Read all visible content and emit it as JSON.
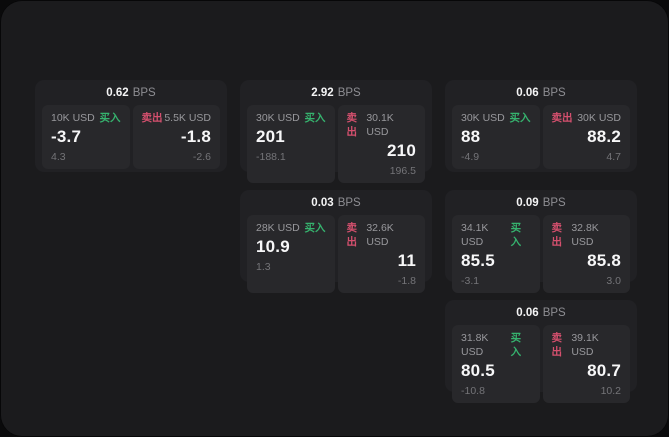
{
  "labels": {
    "bps": "BPS",
    "buy": "买入",
    "sell": "卖出"
  },
  "colors": {
    "background": "#0a0a0b",
    "window_bg": "#1b1b1d",
    "card_bg": "#212124",
    "panel_bg": "#28282b",
    "buy_green": "#36b26e",
    "sell_red": "#d5506e",
    "text_primary": "#f7f7f8",
    "text_secondary": "#98989c"
  },
  "cards": [
    {
      "bps": "0.62",
      "buy": {
        "amount": "10K USD",
        "price": "-3.7",
        "delta": "4.3"
      },
      "sell": {
        "amount": "5.5K USD",
        "price": "-1.8",
        "delta": "-2.6"
      }
    },
    {
      "bps": "2.92",
      "buy": {
        "amount": "30K USD",
        "price": "201",
        "delta": "-188.1"
      },
      "sell": {
        "amount": "30.1K USD",
        "price": "210",
        "delta": "196.5"
      }
    },
    {
      "bps": "0.06",
      "buy": {
        "amount": "30K USD",
        "price": "88",
        "delta": "-4.9"
      },
      "sell": {
        "amount": "30K USD",
        "price": "88.2",
        "delta": "4.7"
      }
    },
    {
      "bps": "0.03",
      "buy": {
        "amount": "28K USD",
        "price": "10.9",
        "delta": "1.3"
      },
      "sell": {
        "amount": "32.6K USD",
        "price": "11",
        "delta": "-1.8"
      }
    },
    {
      "bps": "0.09",
      "buy": {
        "amount": "34.1K USD",
        "price": "85.5",
        "delta": "-3.1"
      },
      "sell": {
        "amount": "32.8K USD",
        "price": "85.8",
        "delta": "3.0"
      }
    },
    {
      "bps": "0.06",
      "buy": {
        "amount": "31.8K USD",
        "price": "80.5",
        "delta": "-10.8"
      },
      "sell": {
        "amount": "39.1K USD",
        "price": "80.7",
        "delta": "10.2"
      }
    }
  ]
}
